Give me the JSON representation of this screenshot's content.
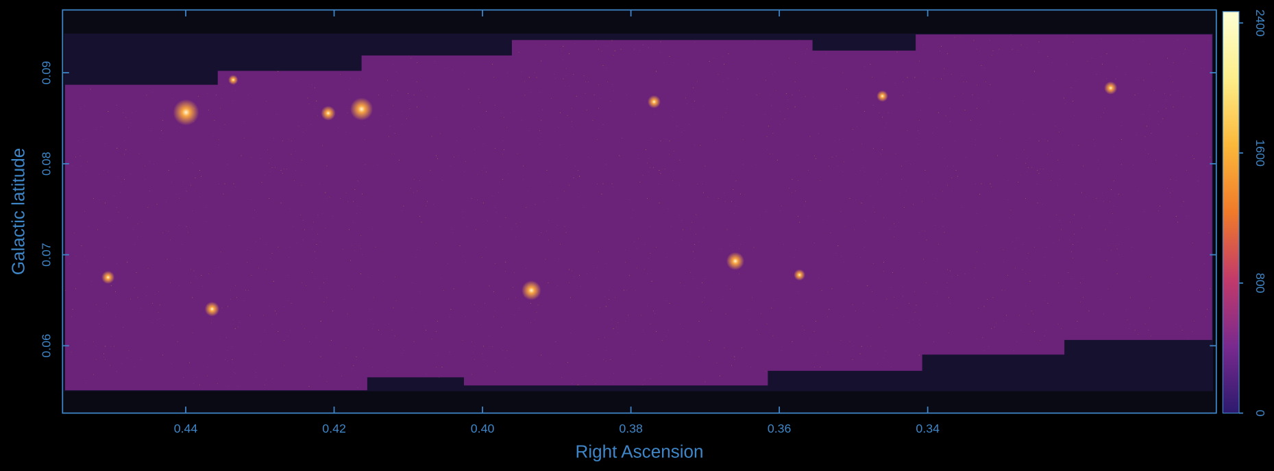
{
  "chart_data": {
    "type": "image",
    "xlabel": "Right Ascension",
    "ylabel": "Galactic latitude",
    "xlim": [
      0.4566,
      0.3011
    ],
    "ylim": [
      0.0526,
      0.0969
    ],
    "xticks": [
      0.44,
      0.42,
      {
        "value": 0.4,
        "label": "0.40"
      },
      0.38,
      0.36,
      0.34
    ],
    "yticks": [
      0.06,
      0.07,
      0.08,
      0.09
    ],
    "axis_color": "#3f86c8",
    "colorbar": {
      "lim": [
        0,
        2470
      ],
      "ticks": [
        0,
        800,
        1600,
        2400
      ],
      "colors": [
        "#2c1a6e",
        "#7a2a8e",
        "#c23a6a",
        "#f07a2a",
        "#fbb83a",
        "#fcee8a",
        "#fcffd4"
      ]
    }
  }
}
